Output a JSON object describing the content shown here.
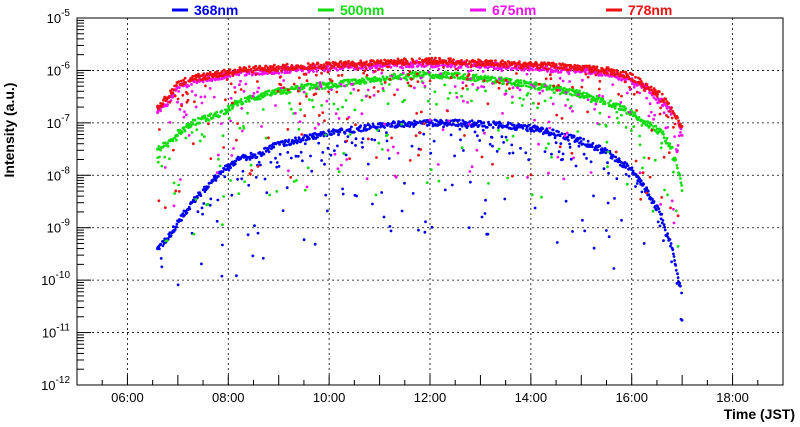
{
  "chart_data": {
    "type": "scatter",
    "title": "",
    "xlabel": "Time (JST)",
    "ylabel": "Intensity (a.u.)",
    "yscale": "log",
    "x_unit": "hour",
    "xlim": [
      5.0,
      19.0
    ],
    "ylim_exp": [
      -12,
      -5
    ],
    "grid": true,
    "legend_position": "top",
    "x_ticks": [
      {
        "value": 6,
        "label": "06:00"
      },
      {
        "value": 8,
        "label": "08:00"
      },
      {
        "value": 10,
        "label": "10:00"
      },
      {
        "value": 12,
        "label": "12:00"
      },
      {
        "value": 14,
        "label": "14:00"
      },
      {
        "value": 16,
        "label": "16:00"
      },
      {
        "value": 18,
        "label": "18:00"
      }
    ],
    "y_ticks": [
      {
        "exp": -5,
        "label_base": "10",
        "label_exp": "-5"
      },
      {
        "exp": -6,
        "label_base": "10",
        "label_exp": "-6"
      },
      {
        "exp": -7,
        "label_base": "10",
        "label_exp": "-7"
      },
      {
        "exp": -8,
        "label_base": "10",
        "label_exp": "-8"
      },
      {
        "exp": -9,
        "label_base": "10",
        "label_exp": "-9"
      },
      {
        "exp": -10,
        "label_base": "10",
        "label_exp": "-10"
      },
      {
        "exp": -11,
        "label_base": "10",
        "label_exp": "-11"
      },
      {
        "exp": -12,
        "label_base": "10",
        "label_exp": "-12"
      }
    ],
    "series": [
      {
        "name": "368nm",
        "color": "#0000ee",
        "x": [
          6.6,
          6.8,
          7.0,
          7.3,
          7.6,
          7.9,
          8.2,
          8.6,
          9.0,
          9.5,
          10.0,
          10.5,
          11.0,
          11.5,
          12.0,
          12.5,
          13.0,
          13.5,
          14.0,
          14.5,
          15.0,
          15.5,
          16.0,
          16.3,
          16.6,
          16.8,
          17.0
        ],
        "log10_y": [
          -9.4,
          -9.2,
          -8.9,
          -8.5,
          -8.2,
          -7.9,
          -7.7,
          -7.6,
          -7.4,
          -7.3,
          -7.2,
          -7.12,
          -7.05,
          -7.02,
          -7.0,
          -7.0,
          -7.02,
          -7.05,
          -7.1,
          -7.2,
          -7.35,
          -7.55,
          -7.9,
          -8.3,
          -8.8,
          -9.4,
          -10.3
        ]
      },
      {
        "name": "500nm",
        "color": "#11dd11",
        "x": [
          6.6,
          6.8,
          7.0,
          7.3,
          7.6,
          7.9,
          8.2,
          8.6,
          9.0,
          9.5,
          10.0,
          10.5,
          11.0,
          11.5,
          12.0,
          12.5,
          13.0,
          13.5,
          14.0,
          14.5,
          15.0,
          15.5,
          16.0,
          16.3,
          16.6,
          16.8,
          17.0
        ],
        "log10_y": [
          -7.5,
          -7.4,
          -7.2,
          -7.0,
          -6.9,
          -6.8,
          -6.6,
          -6.5,
          -6.4,
          -6.32,
          -6.28,
          -6.22,
          -6.15,
          -6.1,
          -6.08,
          -6.1,
          -6.15,
          -6.2,
          -6.28,
          -6.35,
          -6.45,
          -6.6,
          -6.8,
          -7.0,
          -7.2,
          -7.5,
          -8.2
        ]
      },
      {
        "name": "675nm",
        "color": "#ee11ee",
        "x": [
          6.6,
          6.8,
          7.0,
          7.3,
          7.6,
          7.9,
          8.2,
          8.6,
          9.0,
          9.5,
          10.0,
          10.5,
          11.0,
          11.5,
          12.0,
          12.5,
          13.0,
          13.5,
          14.0,
          14.5,
          15.0,
          15.5,
          16.0,
          16.3,
          16.6,
          16.8,
          17.0
        ],
        "log10_y": [
          -6.8,
          -6.6,
          -6.35,
          -6.2,
          -6.15,
          -6.1,
          -6.05,
          -6.02,
          -6.0,
          -5.98,
          -5.95,
          -5.92,
          -5.9,
          -5.88,
          -5.87,
          -5.88,
          -5.9,
          -5.92,
          -5.95,
          -5.98,
          -6.0,
          -6.05,
          -6.2,
          -6.35,
          -6.6,
          -6.8,
          -7.2
        ]
      },
      {
        "name": "778nm",
        "color": "#ee1111",
        "x": [
          6.6,
          6.8,
          7.0,
          7.3,
          7.6,
          7.9,
          8.2,
          8.6,
          9.0,
          9.5,
          10.0,
          10.5,
          11.0,
          11.5,
          12.0,
          12.5,
          13.0,
          13.5,
          14.0,
          14.5,
          15.0,
          15.5,
          16.0,
          16.3,
          16.6,
          16.8,
          17.0
        ],
        "log10_y": [
          -6.7,
          -6.5,
          -6.25,
          -6.15,
          -6.1,
          -6.05,
          -6.0,
          -5.97,
          -5.95,
          -5.92,
          -5.9,
          -5.87,
          -5.85,
          -5.83,
          -5.82,
          -5.83,
          -5.85,
          -5.87,
          -5.9,
          -5.92,
          -5.95,
          -6.0,
          -6.12,
          -6.3,
          -6.5,
          -6.75,
          -7.1
        ]
      }
    ]
  }
}
